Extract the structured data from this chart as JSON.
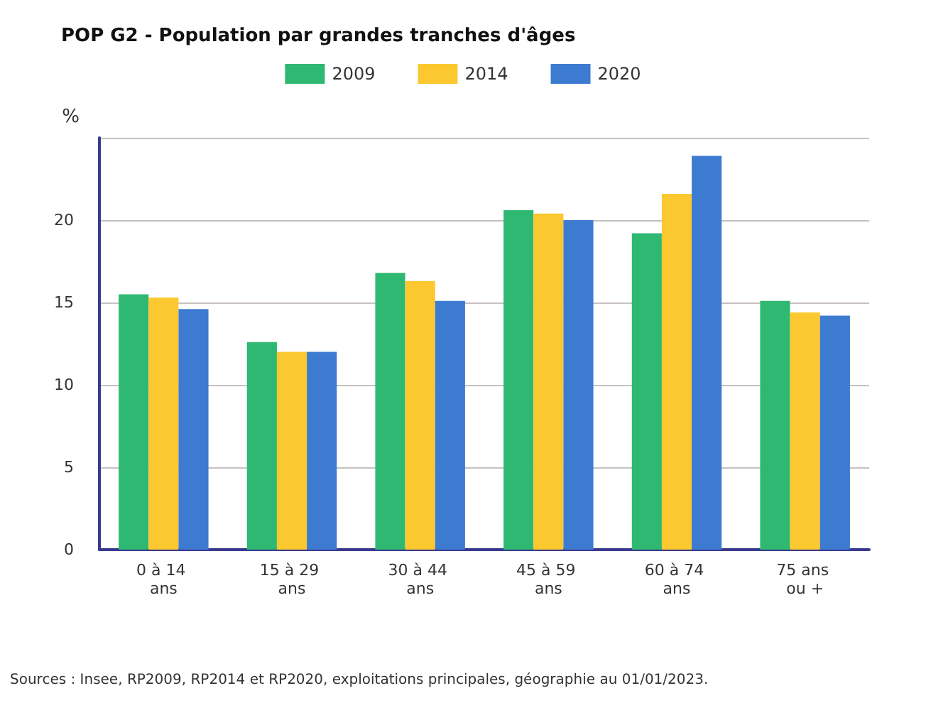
{
  "chart_data": {
    "type": "bar",
    "title": "POP G2 - Population par grandes tranches d'âges",
    "categories": [
      "0 à 14 ans",
      "15 à 29 ans",
      "30 à 44 ans",
      "45 à 59 ans",
      "60 à 74 ans",
      "75 ans ou +"
    ],
    "series": [
      {
        "name": "2009",
        "color": "#2eb872",
        "values": [
          15.5,
          12.6,
          16.8,
          20.6,
          19.2,
          15.1
        ]
      },
      {
        "name": "2014",
        "color": "#fbc82f",
        "values": [
          15.3,
          12.0,
          16.3,
          20.4,
          21.6,
          14.4
        ]
      },
      {
        "name": "2020",
        "color": "#3d7bd0",
        "values": [
          14.6,
          12.0,
          15.1,
          20.0,
          23.9,
          14.2
        ]
      }
    ],
    "ylabel": "%",
    "ylim": [
      0,
      25
    ],
    "yticks": [
      0,
      5,
      10,
      15,
      20
    ],
    "grid": "y",
    "legend": "top",
    "annotations": [
      "Sources : Insee, RP2009, RP2014 et RP2020, exploitations principales, géographie au 01/01/2023."
    ]
  }
}
